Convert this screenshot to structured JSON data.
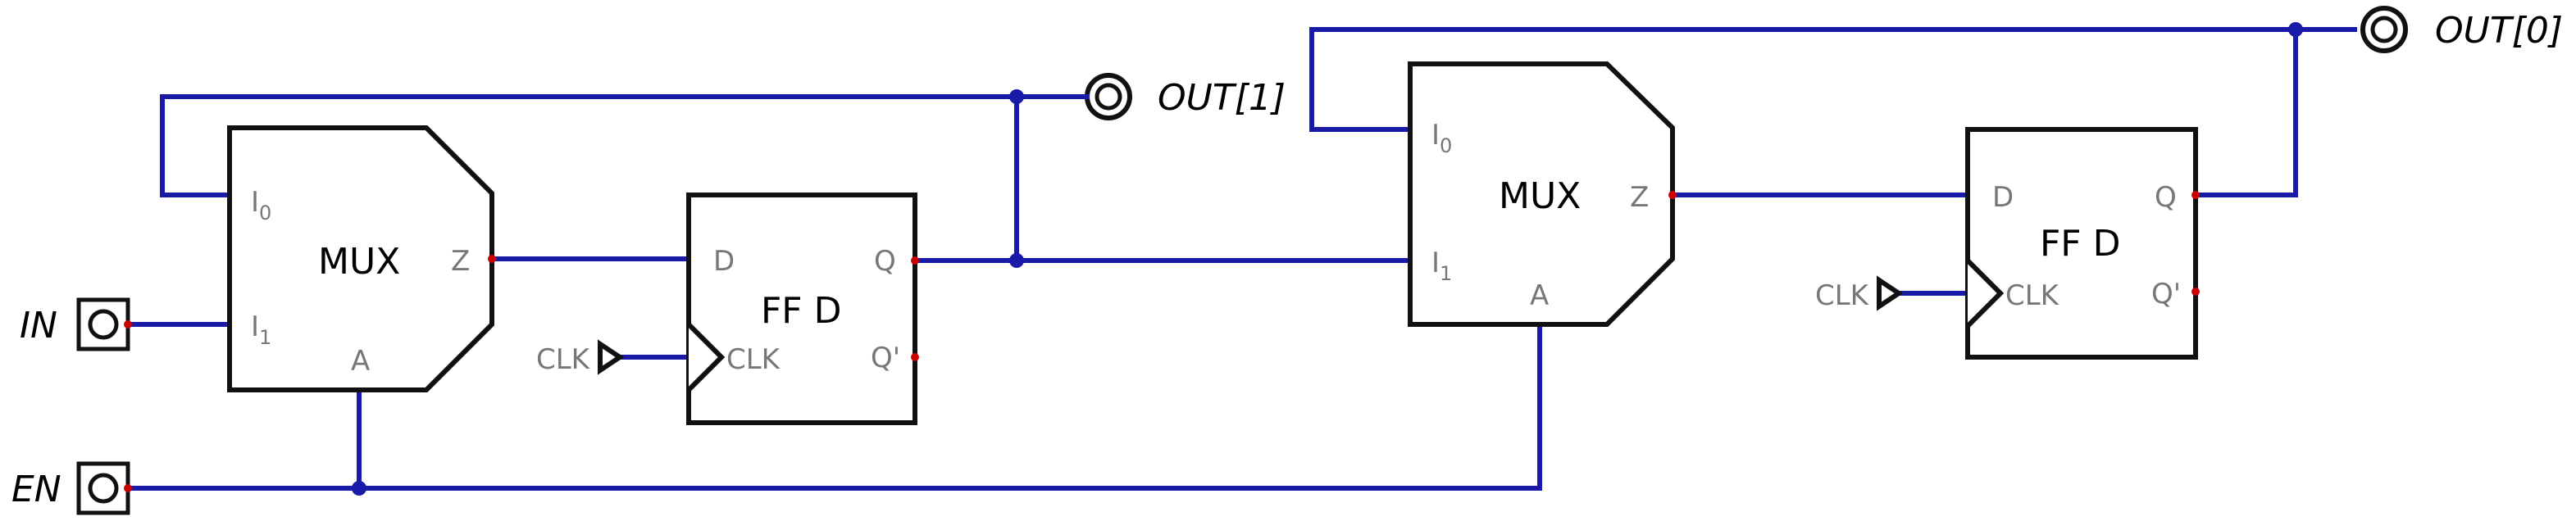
{
  "inputs": {
    "in": "IN",
    "en": "EN"
  },
  "outputs": {
    "out1": "OUT[1]",
    "out0": "OUT[0]"
  },
  "mux": {
    "title": "MUX",
    "i0_main": "I",
    "i0_sub": "0",
    "i1_main": "I",
    "i1_sub": "1",
    "z": "Z",
    "a": "A"
  },
  "ff": {
    "title": "FF  D",
    "d": "D",
    "q": "Q",
    "qn": "Q'",
    "clk": "CLK"
  },
  "clock_source": "CLK",
  "colors": {
    "wire": "#1a1aa8",
    "pin": "#cc0000",
    "outline": "#111111",
    "pin_label": "#777777"
  }
}
